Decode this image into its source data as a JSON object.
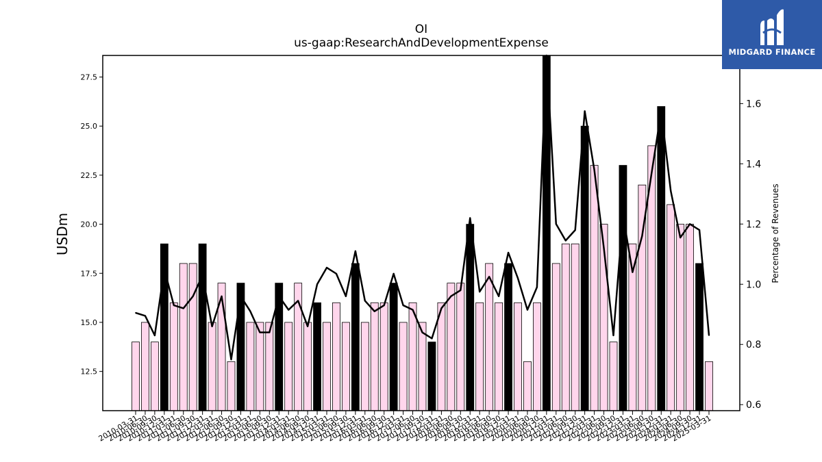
{
  "chart_data": {
    "type": "bar",
    "title": "OI",
    "subtitle": "us-gaap:ResearchAndDevelopmentExpense",
    "ylabel": "USDm",
    "y2label": "Percentage of Revenues",
    "ylim": [
      10.5,
      28.6
    ],
    "y2lim": [
      0.58,
      1.76
    ],
    "yticks": [
      "12.5",
      "15.0",
      "17.5",
      "20.0",
      "22.5",
      "25.0",
      "27.5"
    ],
    "y2ticks": [
      "0.6",
      "0.8",
      "1.0",
      "1.2",
      "1.4",
      "1.6"
    ],
    "grid": false,
    "colors": {
      "quarter_bar": "#ffd6ec",
      "annual_bar": "#000000",
      "line": "#000000",
      "edge": "#000000"
    },
    "categories": [
      "2010-03-31",
      "2010-06-30",
      "2010-09-30",
      "2010-12-31",
      "2011-03-31",
      "2011-06-30",
      "2011-09-30",
      "2011-12-31",
      "2012-03-31",
      "2012-06-30",
      "2012-09-30",
      "2012-12-31",
      "2013-03-31",
      "2013-06-30",
      "2013-09-30",
      "2013-12-31",
      "2014-03-31",
      "2014-06-30",
      "2014-09-30",
      "2014-12-31",
      "2015-03-31",
      "2015-06-30",
      "2015-09-30",
      "2015-12-31",
      "2016-03-31",
      "2016-06-30",
      "2016-09-30",
      "2016-12-31",
      "2017-03-31",
      "2017-06-30",
      "2017-09-30",
      "2017-12-31",
      "2018-03-31",
      "2018-06-30",
      "2018-09-30",
      "2018-12-31",
      "2019-03-31",
      "2019-06-30",
      "2019-09-30",
      "2019-12-31",
      "2020-03-31",
      "2020-06-30",
      "2020-09-30",
      "2020-12-31",
      "2021-03-31",
      "2021-06-30",
      "2021-09-30",
      "2021-12-31",
      "2022-03-31",
      "2022-06-30",
      "2022-09-30",
      "2022-12-31",
      "2023-03-31",
      "2023-06-30",
      "2023-09-30",
      "2023-12-31",
      "2024-03-31",
      "2024-06-30",
      "2024-09-30",
      "2024-12-31",
      "2025-03-31"
    ],
    "series": [
      {
        "values": [
          14,
          15,
          14,
          19,
          16,
          18,
          18,
          19,
          15,
          17,
          13,
          17,
          15,
          15,
          15,
          17,
          15,
          17,
          15,
          16,
          15,
          16,
          15,
          18,
          15,
          16,
          16,
          17,
          15,
          16,
          15,
          14,
          16,
          17,
          17,
          20,
          16,
          18,
          16,
          18,
          16,
          13,
          16,
          29,
          18,
          19,
          19,
          25,
          23,
          20,
          14,
          23,
          19,
          22,
          24,
          26,
          21,
          20,
          20,
          18,
          13
        ]
      },
      {
        "values": [
          0.905,
          0.895,
          0.83,
          1.05,
          0.93,
          0.92,
          0.96,
          1.03,
          0.86,
          0.96,
          0.75,
          0.96,
          0.91,
          0.84,
          0.84,
          0.96,
          0.915,
          0.945,
          0.86,
          1.0,
          1.055,
          1.035,
          0.96,
          1.11,
          0.945,
          0.91,
          0.93,
          1.035,
          0.93,
          0.915,
          0.84,
          0.82,
          0.92,
          0.96,
          0.98,
          1.22,
          0.975,
          1.025,
          0.96,
          1.105,
          1.02,
          0.915,
          0.99,
          1.76,
          1.2,
          1.145,
          1.18,
          1.575,
          1.38,
          1.12,
          0.83,
          1.23,
          1.04,
          1.16,
          1.37,
          1.575,
          1.31,
          1.155,
          1.2,
          1.18,
          0.83
        ]
      }
    ]
  },
  "logo": {
    "brand": "MIDGARD FINANCE"
  }
}
